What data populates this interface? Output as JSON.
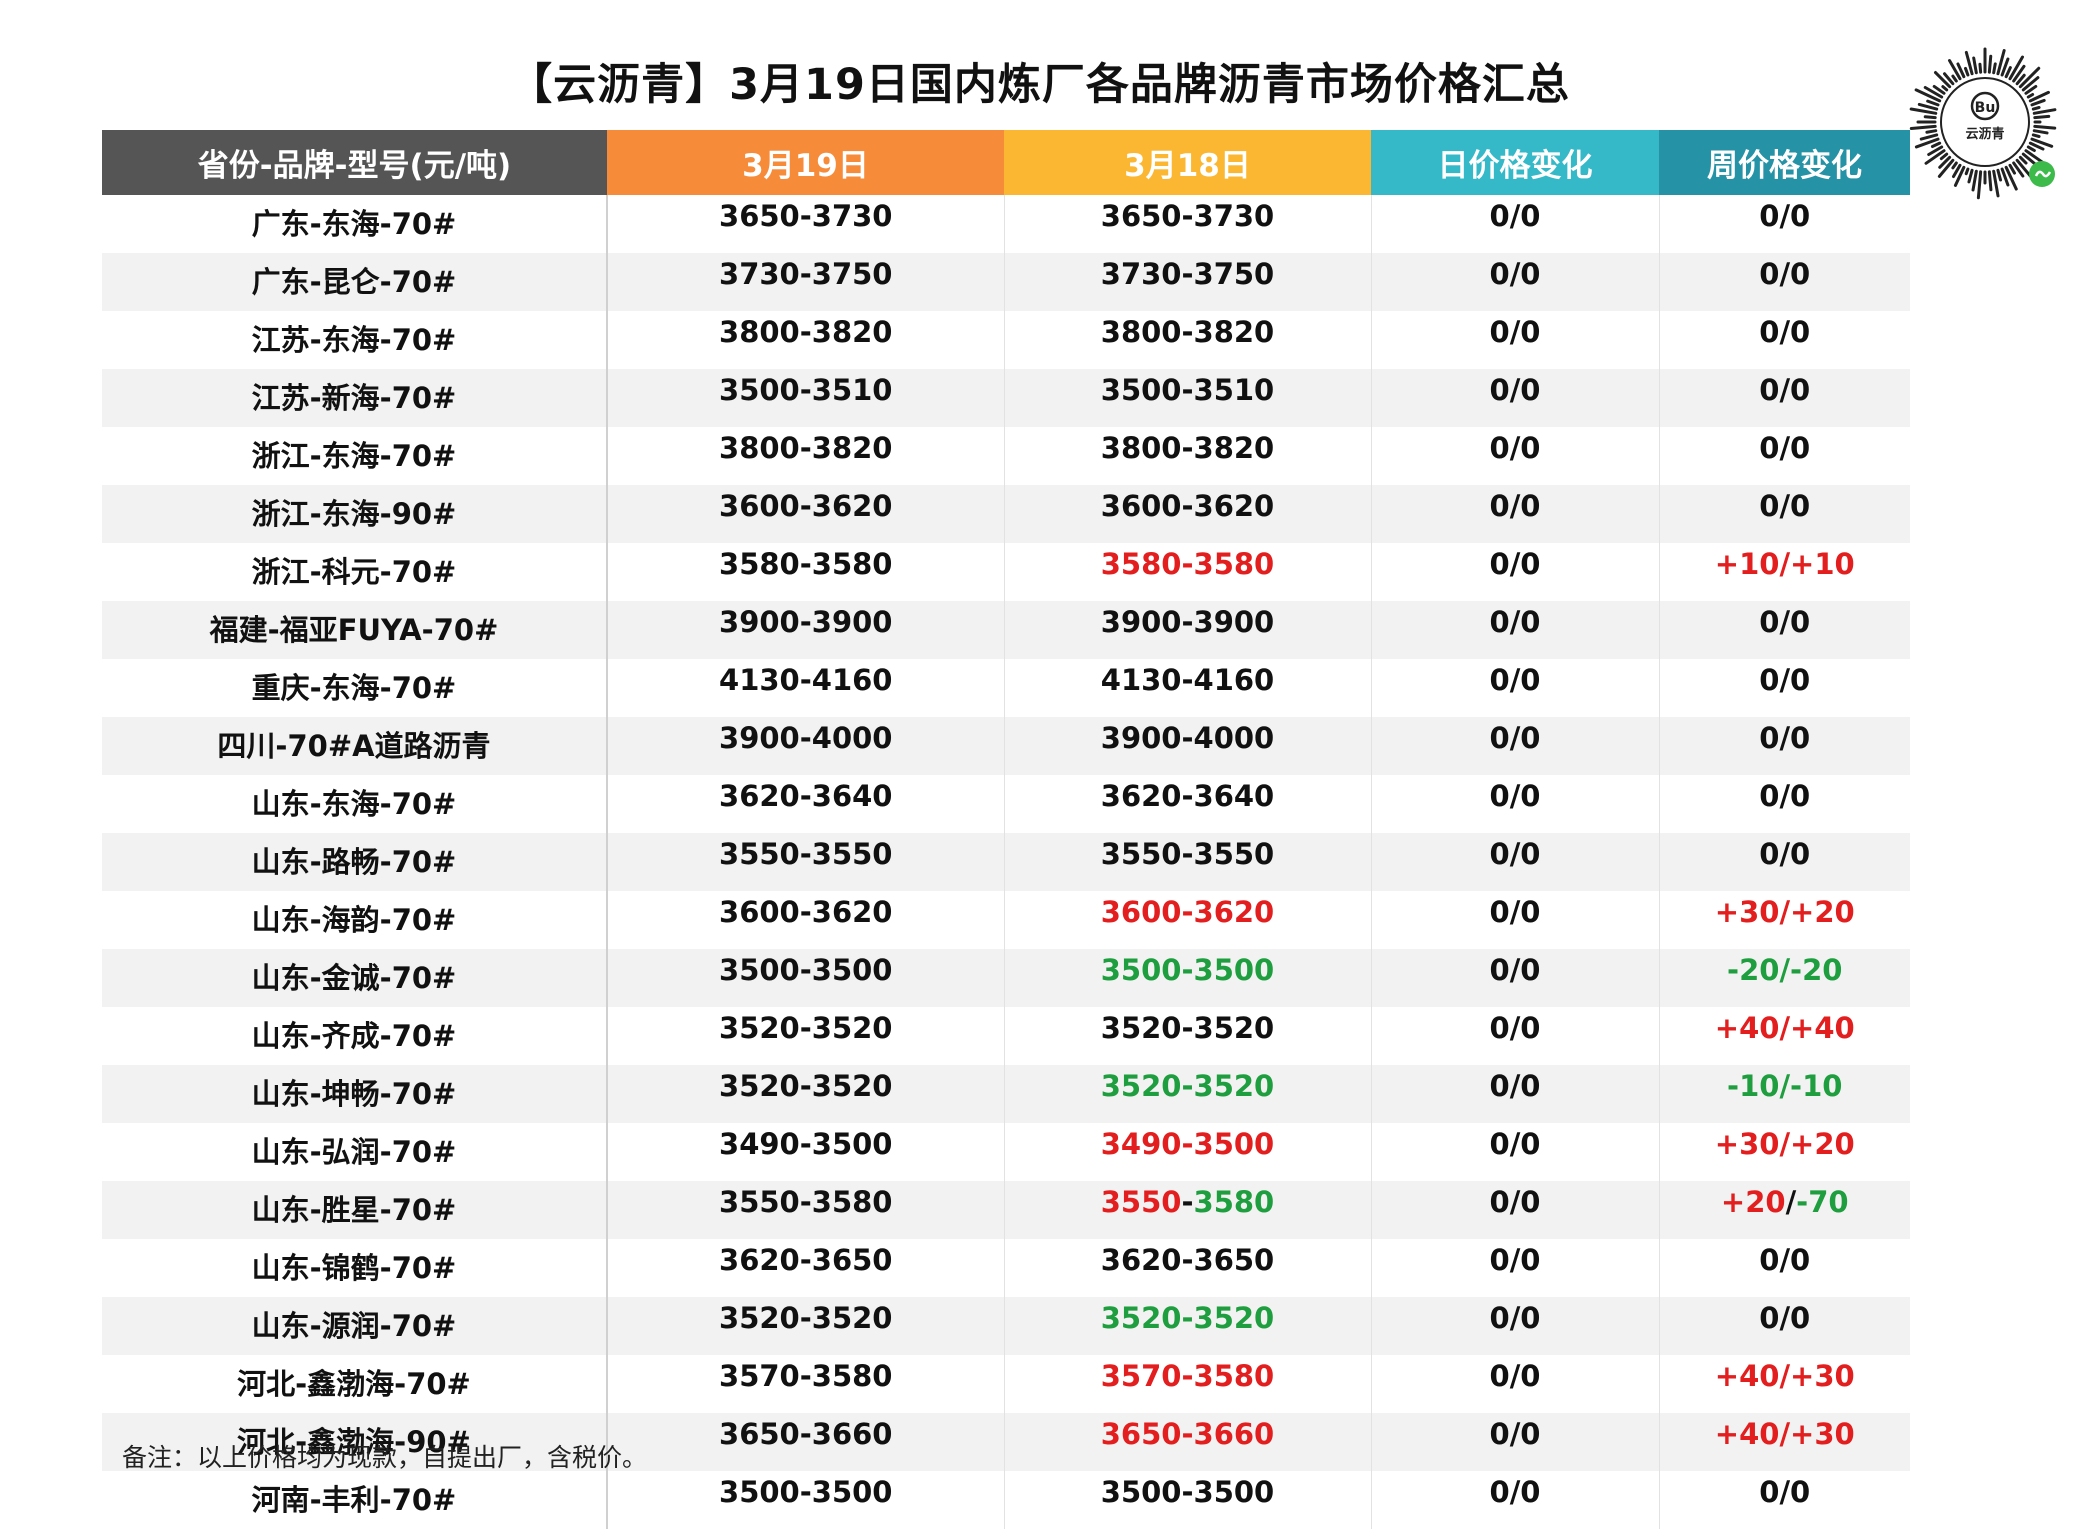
{
  "title": "【云沥青】3月19日国内炼厂各品牌沥青市场价格汇总",
  "headers": [
    "省份-品牌-型号(元/吨)",
    "3月19日",
    "3月18日",
    "日价格变化",
    "周价格变化"
  ],
  "header_colors": [
    "#555555",
    "#f68b3a",
    "#fbb731",
    "#35b9c8",
    "#2592a6"
  ],
  "colors": {
    "up": "#e31e1e",
    "down": "#1e9e3e",
    "stripe": "#f2f2f2"
  },
  "qr": {
    "label": "云沥青",
    "icon": "wechat-mini-program-qr-icon"
  },
  "rows": [
    {
      "name": "广东-东海-70#",
      "d19": "3650-3730",
      "d18": "3650-3730",
      "day": "0/0",
      "week": "0/0",
      "d18c": [
        "n",
        "n"
      ],
      "wkc": [
        "n",
        "n"
      ]
    },
    {
      "name": "广东-昆仑-70#",
      "d19": "3730-3750",
      "d18": "3730-3750",
      "day": "0/0",
      "week": "0/0",
      "d18c": [
        "n",
        "n"
      ],
      "wkc": [
        "n",
        "n"
      ]
    },
    {
      "name": "江苏-东海-70#",
      "d19": "3800-3820",
      "d18": "3800-3820",
      "day": "0/0",
      "week": "0/0",
      "d18c": [
        "n",
        "n"
      ],
      "wkc": [
        "n",
        "n"
      ]
    },
    {
      "name": "江苏-新海-70#",
      "d19": "3500-3510",
      "d18": "3500-3510",
      "day": "0/0",
      "week": "0/0",
      "d18c": [
        "n",
        "n"
      ],
      "wkc": [
        "n",
        "n"
      ]
    },
    {
      "name": "浙江-东海-70#",
      "d19": "3800-3820",
      "d18": "3800-3820",
      "day": "0/0",
      "week": "0/0",
      "d18c": [
        "n",
        "n"
      ],
      "wkc": [
        "n",
        "n"
      ]
    },
    {
      "name": "浙江-东海-90#",
      "d19": "3600-3620",
      "d18": "3600-3620",
      "day": "0/0",
      "week": "0/0",
      "d18c": [
        "n",
        "n"
      ],
      "wkc": [
        "n",
        "n"
      ]
    },
    {
      "name": "浙江-科元-70#",
      "d19": "3580-3580",
      "d18": "3580-3580",
      "day": "0/0",
      "week": "+10/+10",
      "d18c": [
        "up",
        "up"
      ],
      "wkc": [
        "up",
        "up"
      ]
    },
    {
      "name": "福建-福亚FUYA-70#",
      "d19": "3900-3900",
      "d18": "3900-3900",
      "day": "0/0",
      "week": "0/0",
      "d18c": [
        "n",
        "n"
      ],
      "wkc": [
        "n",
        "n"
      ]
    },
    {
      "name": "重庆-东海-70#",
      "d19": "4130-4160",
      "d18": "4130-4160",
      "day": "0/0",
      "week": "0/0",
      "d18c": [
        "n",
        "n"
      ],
      "wkc": [
        "n",
        "n"
      ]
    },
    {
      "name": "四川-70#A道路沥青",
      "d19": "3900-4000",
      "d18": "3900-4000",
      "day": "0/0",
      "week": "0/0",
      "d18c": [
        "n",
        "n"
      ],
      "wkc": [
        "n",
        "n"
      ]
    },
    {
      "name": "山东-东海-70#",
      "d19": "3620-3640",
      "d18": "3620-3640",
      "day": "0/0",
      "week": "0/0",
      "d18c": [
        "n",
        "n"
      ],
      "wkc": [
        "n",
        "n"
      ]
    },
    {
      "name": "山东-路畅-70#",
      "d19": "3550-3550",
      "d18": "3550-3550",
      "day": "0/0",
      "week": "0/0",
      "d18c": [
        "n",
        "n"
      ],
      "wkc": [
        "n",
        "n"
      ]
    },
    {
      "name": "山东-海韵-70#",
      "d19": "3600-3620",
      "d18": "3600-3620",
      "day": "0/0",
      "week": "+30/+20",
      "d18c": [
        "up",
        "up"
      ],
      "wkc": [
        "up",
        "up"
      ]
    },
    {
      "name": "山东-金诚-70#",
      "d19": "3500-3500",
      "d18": "3500-3500",
      "day": "0/0",
      "week": "-20/-20",
      "d18c": [
        "down",
        "down"
      ],
      "wkc": [
        "down",
        "down"
      ]
    },
    {
      "name": "山东-齐成-70#",
      "d19": "3520-3520",
      "d18": "3520-3520",
      "day": "0/0",
      "week": "+40/+40",
      "d18c": [
        "n",
        "n"
      ],
      "wkc": [
        "up",
        "up"
      ]
    },
    {
      "name": "山东-坤畅-70#",
      "d19": "3520-3520",
      "d18": "3520-3520",
      "day": "0/0",
      "week": "-10/-10",
      "d18c": [
        "down",
        "down"
      ],
      "wkc": [
        "down",
        "down"
      ]
    },
    {
      "name": "山东-弘润-70#",
      "d19": "3490-3500",
      "d18": "3490-3500",
      "day": "0/0",
      "week": "+30/+20",
      "d18c": [
        "up",
        "up"
      ],
      "wkc": [
        "up",
        "up"
      ]
    },
    {
      "name": "山东-胜星-70#",
      "d19": "3550-3580",
      "d18": "3550-3580",
      "day": "0/0",
      "week": "+20/-70",
      "d18c": [
        "up",
        "down"
      ],
      "wkc": [
        "up",
        "down"
      ]
    },
    {
      "name": "山东-锦鹤-70#",
      "d19": "3620-3650",
      "d18": "3620-3650",
      "day": "0/0",
      "week": "0/0",
      "d18c": [
        "n",
        "n"
      ],
      "wkc": [
        "n",
        "n"
      ]
    },
    {
      "name": "山东-源润-70#",
      "d19": "3520-3520",
      "d18": "3520-3520",
      "day": "0/0",
      "week": "0/0",
      "d18c": [
        "down",
        "down"
      ],
      "wkc": [
        "n",
        "n"
      ]
    },
    {
      "name": "河北-鑫渤海-70#",
      "d19": "3570-3580",
      "d18": "3570-3580",
      "day": "0/0",
      "week": "+40/+30",
      "d18c": [
        "up",
        "up"
      ],
      "wkc": [
        "up",
        "up"
      ]
    },
    {
      "name": "河北-鑫渤海-90#",
      "d19": "3650-3660",
      "d18": "3650-3660",
      "day": "0/0",
      "week": "+40/+30",
      "d18c": [
        "up",
        "up"
      ],
      "wkc": [
        "up",
        "up"
      ]
    },
    {
      "name": "河南-丰利-70#",
      "d19": "3500-3500",
      "d18": "3500-3500",
      "day": "0/0",
      "week": "0/0",
      "d18c": [
        "n",
        "n"
      ],
      "wkc": [
        "n",
        "n"
      ]
    }
  ],
  "note": "备注：以上价格均为现款，自提出厂，含税价。"
}
